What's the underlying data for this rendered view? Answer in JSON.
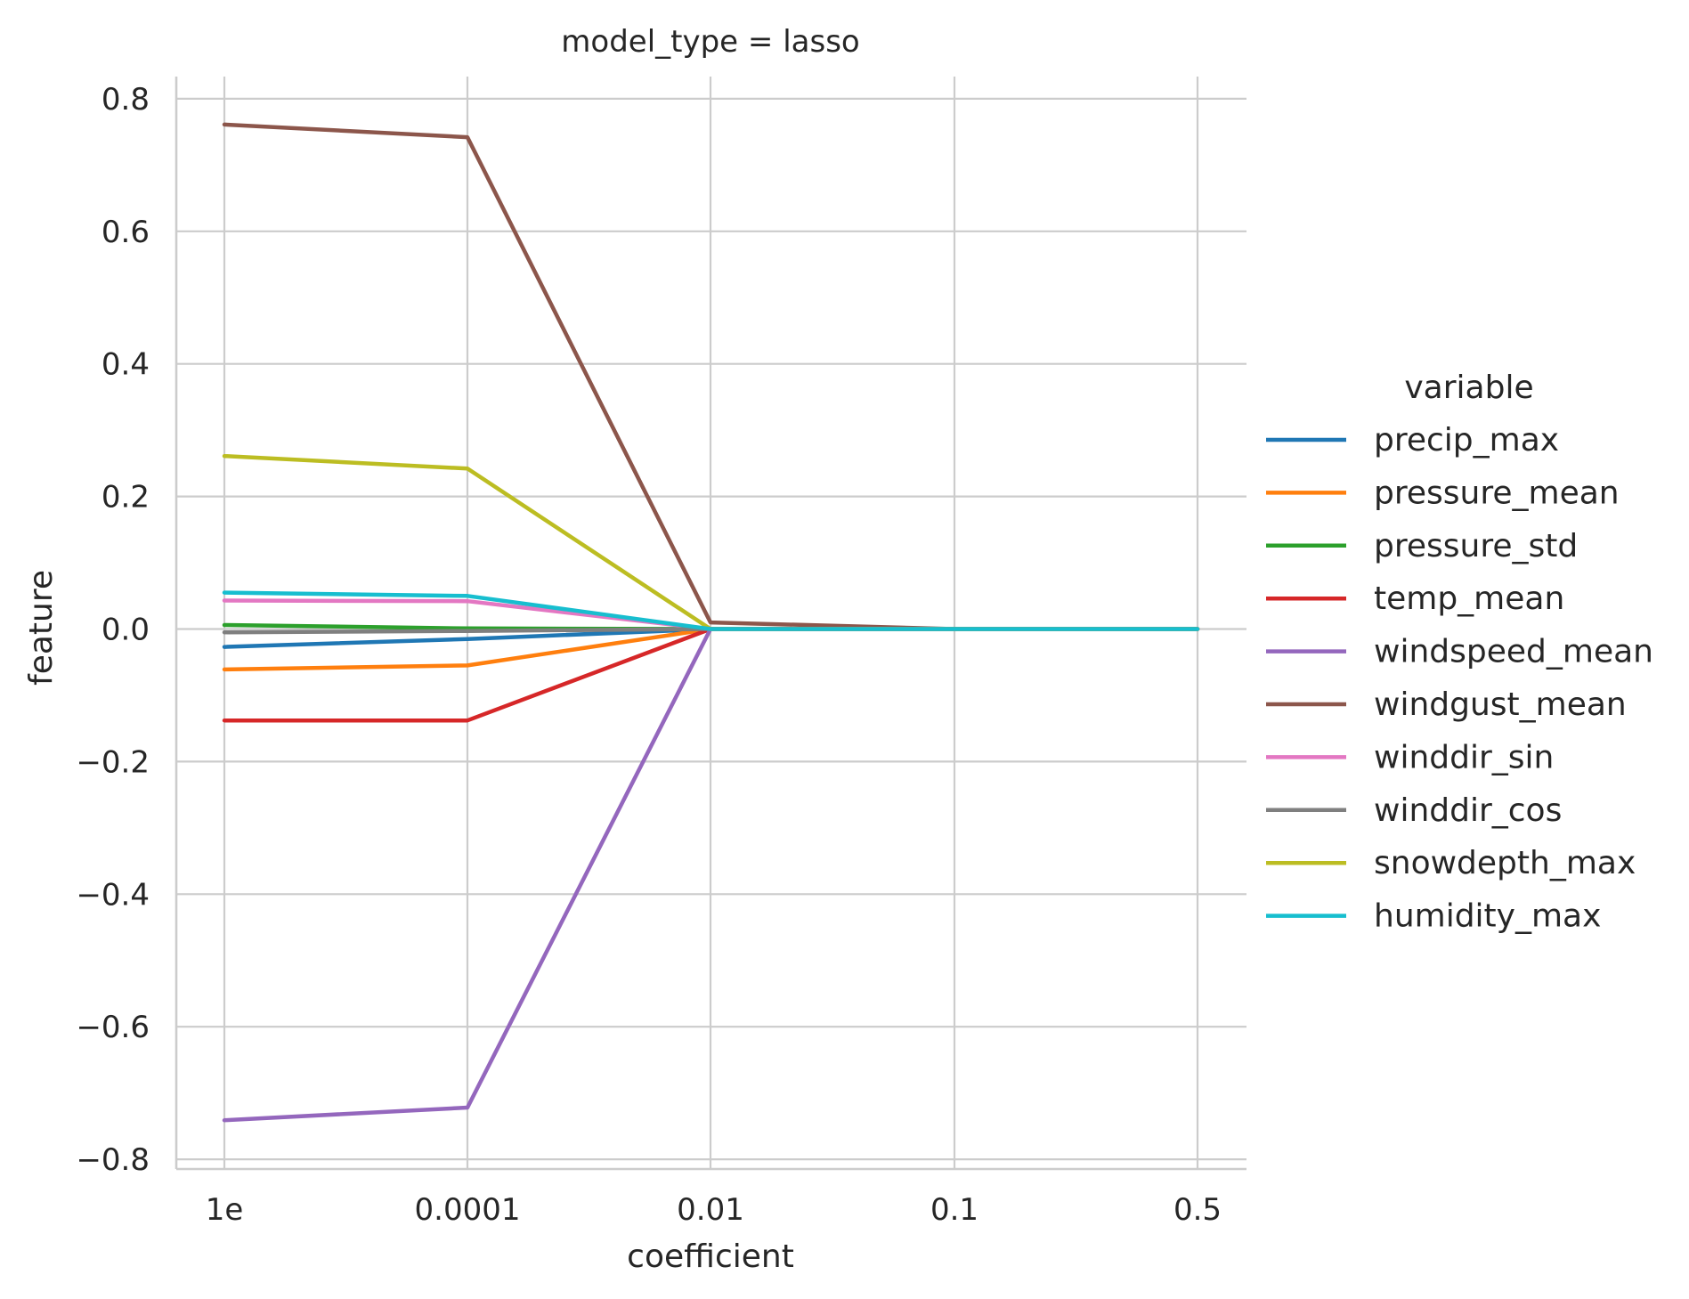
{
  "chart_data": {
    "type": "line",
    "title": "model_type = lasso",
    "xlabel": "coefficient",
    "ylabel": "feature",
    "categories": [
      "1e",
      "0.0001",
      "0.01",
      "0.1",
      "0.5"
    ],
    "yticks": [
      0.8,
      0.6,
      0.4,
      0.2,
      0.0,
      -0.2,
      -0.4,
      -0.6,
      -0.8
    ],
    "ytick_labels": [
      "0.8",
      "0.6",
      "0.4",
      "0.2",
      "0.0",
      "−0.2",
      "−0.4",
      "−0.6",
      "−0.8"
    ],
    "ylim": [
      -0.82,
      0.84
    ],
    "grid": true,
    "legend": {
      "title": "variable",
      "position": "right"
    },
    "series": [
      {
        "name": "precip_max",
        "color": "#1f77b4",
        "values": [
          -0.027,
          -0.015,
          0.0,
          0.0,
          0.0
        ]
      },
      {
        "name": "pressure_mean",
        "color": "#ff7f0e",
        "values": [
          -0.061,
          -0.055,
          0.0,
          0.0,
          0.0
        ]
      },
      {
        "name": "pressure_std",
        "color": "#2ca02c",
        "values": [
          0.006,
          0.001,
          0.0,
          0.0,
          0.0
        ]
      },
      {
        "name": "temp_mean",
        "color": "#d62728",
        "values": [
          -0.138,
          -0.138,
          0.0,
          0.0,
          0.0
        ]
      },
      {
        "name": "windspeed_mean",
        "color": "#9467bd",
        "values": [
          -0.741,
          -0.722,
          0.0,
          0.0,
          0.0
        ]
      },
      {
        "name": "windgust_mean",
        "color": "#8c564b",
        "values": [
          0.761,
          0.742,
          0.01,
          0.0,
          0.0
        ]
      },
      {
        "name": "winddir_sin",
        "color": "#e377c2",
        "values": [
          0.043,
          0.042,
          0.0,
          0.0,
          0.0
        ]
      },
      {
        "name": "winddir_cos",
        "color": "#7f7f7f",
        "values": [
          -0.005,
          -0.003,
          0.0,
          0.0,
          0.0
        ]
      },
      {
        "name": "snowdepth_max",
        "color": "#bcbd22",
        "values": [
          0.261,
          0.242,
          0.0,
          0.0,
          0.0
        ]
      },
      {
        "name": "humidity_max",
        "color": "#17becf",
        "values": [
          0.055,
          0.05,
          0.0,
          0.0,
          0.0
        ]
      }
    ]
  }
}
